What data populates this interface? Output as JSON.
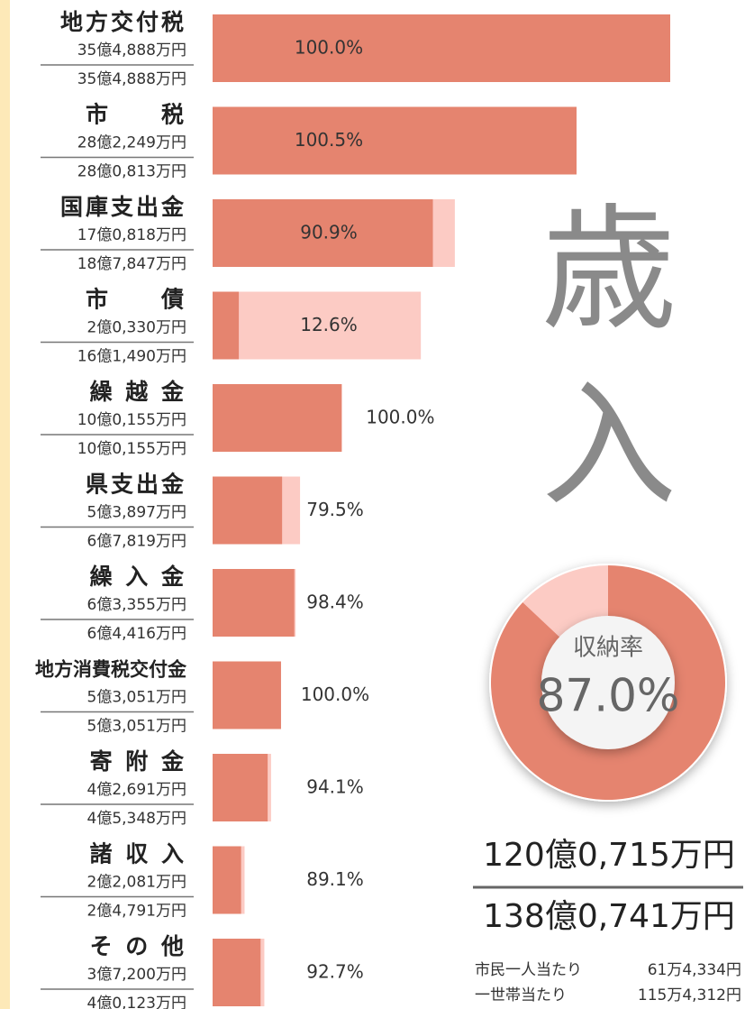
{
  "chart_data": {
    "type": "bar",
    "orientation": "horizontal",
    "title": "歳入",
    "categories": [
      "地方交付税",
      "市　　税",
      "国庫支出金",
      "市　　債",
      "繰 越 金",
      "県支出金",
      "繰 入 金",
      "地方消費税交付金",
      "寄 附 金",
      "諸 収 入",
      "そ の 他"
    ],
    "xlim": [
      0,
      354888
    ],
    "series": [
      {
        "color": "#fccbc4",
        "values": [
          354888,
          280813,
          187847,
          161490,
          100155,
          67819,
          64416,
          53051,
          45348,
          24791,
          40123
        ],
        "value_labels": [
          "35億4,888万円",
          "28億0,813万円",
          "18億7,847万円",
          "16億1,490万円",
          "10億0,155万円",
          "6億7,819万円",
          "6億4,416万円",
          "5億3,051万円",
          "4億5,348万円",
          "2億4,791万円",
          "4億0,123万円"
        ]
      },
      {
        "color": "#e5846f",
        "values": [
          354888,
          282249,
          170818,
          20330,
          100155,
          53897,
          63355,
          53051,
          42691,
          22081,
          37200
        ],
        "value_labels": [
          "35億4,888万円",
          "28億2,249万円",
          "17億0,818万円",
          "2億0,330万円",
          "10億0,155万円",
          "5億3,897万円",
          "6億3,355万円",
          "5億3,051万円",
          "4億2,691万円",
          "2億2,081万円",
          "3億7,200万円"
        ]
      }
    ],
    "rates": [
      100.0,
      100.5,
      90.9,
      12.6,
      100.0,
      79.5,
      98.4,
      100.0,
      94.1,
      89.1,
      92.7
    ],
    "rate_labels": [
      "100.0%",
      "100.5%",
      "90.9%",
      "12.6%",
      "100.0%",
      "79.5%",
      "98.4%",
      "100.0%",
      "94.1%",
      "89.1%",
      "92.7%"
    ],
    "donut": {
      "label": "収納率",
      "value": 87.0,
      "value_label": "87.0%",
      "colors": [
        "#e5846f",
        "#fccbc4"
      ]
    },
    "total_collected": "120億0,715万円",
    "total_budget": "138億0,741万円",
    "per_capita": [
      {
        "label": "市民一人当たり",
        "value": "61万4,334円"
      },
      {
        "label": "一世帯当たり",
        "value": "115万4,312円"
      }
    ]
  }
}
